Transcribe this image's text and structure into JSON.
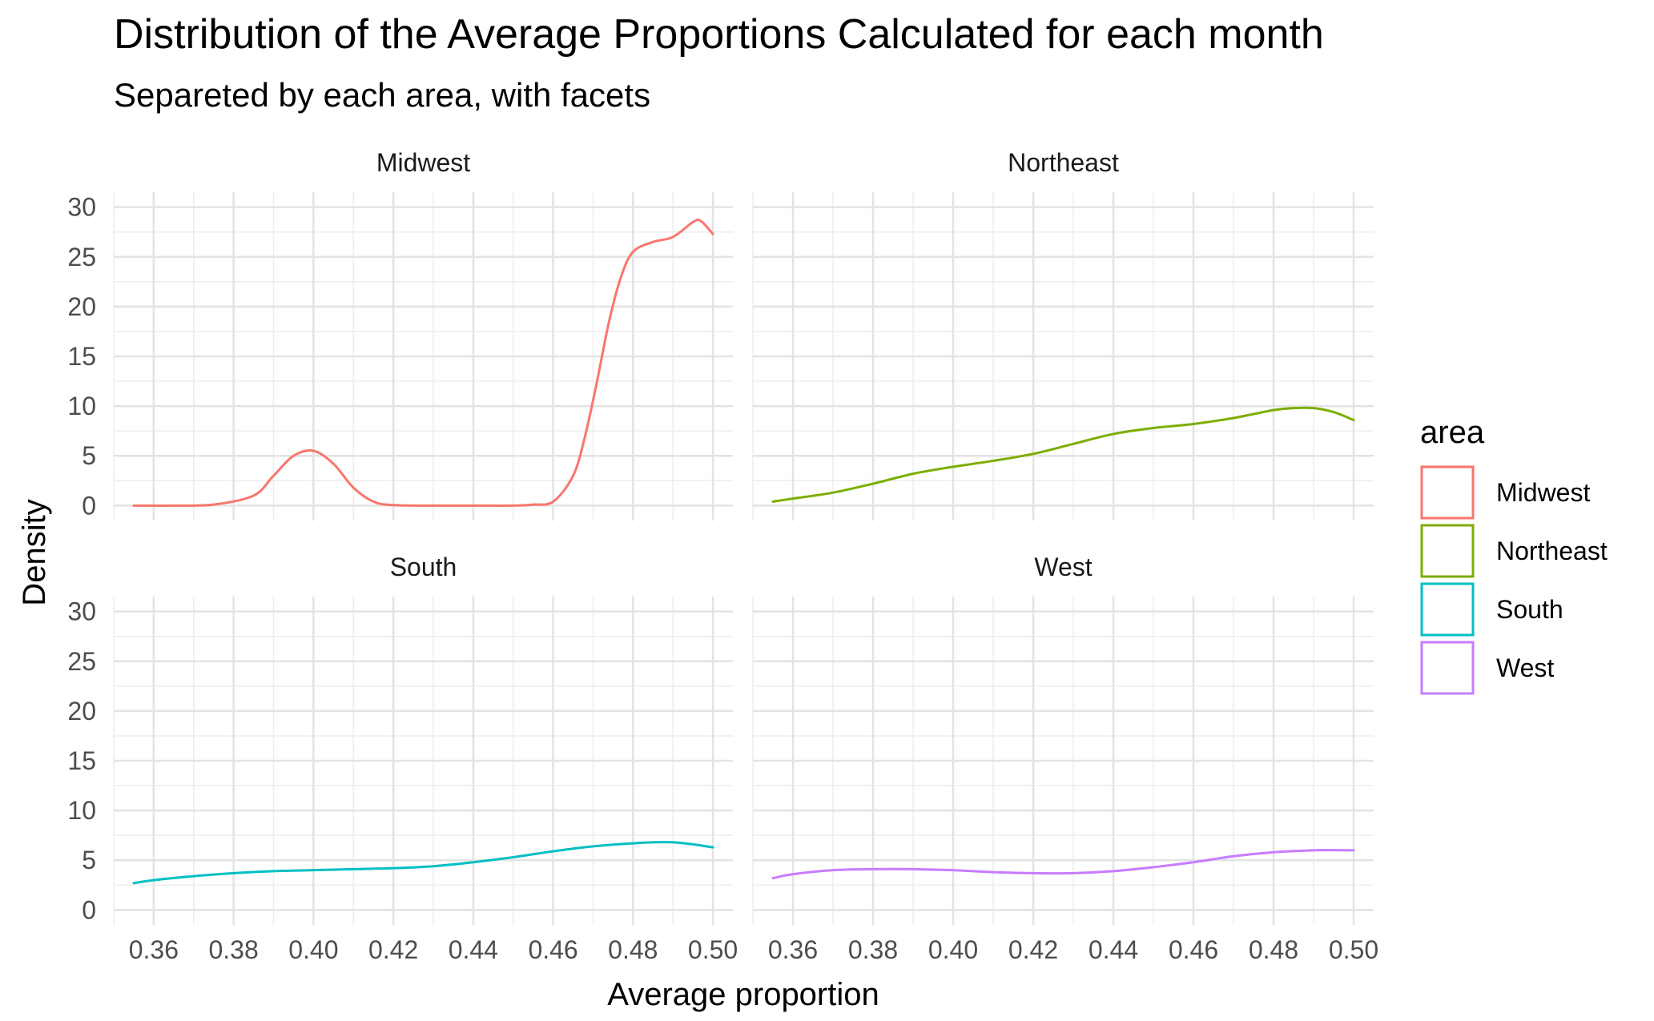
{
  "chart_data": {
    "type": "line",
    "title": "Distribution of the Average Proportions Calculated for each month",
    "subtitle": "Separeted by each area, with facets",
    "xlabel": "Average proportion",
    "ylabel": "Density",
    "xlim": [
      0.35,
      0.505
    ],
    "ylim": [
      -1.5,
      31.5
    ],
    "x_ticks": [
      "0.36",
      "0.38",
      "0.40",
      "0.42",
      "0.44",
      "0.46",
      "0.48",
      "0.50"
    ],
    "x_tick_values": [
      0.36,
      0.38,
      0.4,
      0.42,
      0.44,
      0.46,
      0.48,
      0.5
    ],
    "y_ticks": [
      "0",
      "5",
      "10",
      "15",
      "20",
      "25",
      "30"
    ],
    "y_tick_values": [
      0,
      5,
      10,
      15,
      20,
      25,
      30
    ],
    "grid": true,
    "legend": {
      "title": "area",
      "position": "right"
    },
    "series": [
      {
        "name": "Midwest",
        "color": "#F8766D",
        "x": [
          0.355,
          0.365,
          0.375,
          0.385,
          0.39,
          0.395,
          0.4,
          0.405,
          0.41,
          0.415,
          0.42,
          0.43,
          0.44,
          0.45,
          0.455,
          0.46,
          0.465,
          0.468,
          0.471,
          0.474,
          0.477,
          0.48,
          0.485,
          0.49,
          0.495,
          0.497,
          0.5
        ],
        "y": [
          0.0,
          0.0,
          0.1,
          1.0,
          3.0,
          5.0,
          5.5,
          4.2,
          1.8,
          0.4,
          0.05,
          0.0,
          0.0,
          0.0,
          0.1,
          0.4,
          3.0,
          7.0,
          12.5,
          18.5,
          23.0,
          25.5,
          26.5,
          27.0,
          28.5,
          28.6,
          27.3
        ]
      },
      {
        "name": "Northeast",
        "color": "#7CAE00",
        "x": [
          0.355,
          0.36,
          0.37,
          0.38,
          0.39,
          0.4,
          0.41,
          0.42,
          0.43,
          0.44,
          0.45,
          0.46,
          0.47,
          0.48,
          0.485,
          0.49,
          0.495,
          0.5
        ],
        "y": [
          0.4,
          0.7,
          1.3,
          2.2,
          3.2,
          3.9,
          4.5,
          5.2,
          6.2,
          7.2,
          7.8,
          8.2,
          8.8,
          9.6,
          9.8,
          9.8,
          9.4,
          8.6
        ]
      },
      {
        "name": "South",
        "color": "#00BFC4",
        "x": [
          0.355,
          0.36,
          0.37,
          0.38,
          0.39,
          0.4,
          0.41,
          0.42,
          0.43,
          0.44,
          0.45,
          0.46,
          0.47,
          0.48,
          0.485,
          0.49,
          0.495,
          0.5
        ],
        "y": [
          2.7,
          3.0,
          3.4,
          3.7,
          3.9,
          4.0,
          4.1,
          4.2,
          4.4,
          4.8,
          5.3,
          5.9,
          6.4,
          6.7,
          6.8,
          6.8,
          6.6,
          6.3
        ]
      },
      {
        "name": "West",
        "color": "#C77CFF",
        "x": [
          0.355,
          0.36,
          0.37,
          0.38,
          0.39,
          0.4,
          0.41,
          0.42,
          0.43,
          0.44,
          0.45,
          0.46,
          0.47,
          0.48,
          0.49,
          0.5
        ],
        "y": [
          3.2,
          3.6,
          4.0,
          4.1,
          4.1,
          4.0,
          3.8,
          3.7,
          3.7,
          3.9,
          4.3,
          4.8,
          5.4,
          5.8,
          6.0,
          6.0
        ]
      }
    ]
  }
}
